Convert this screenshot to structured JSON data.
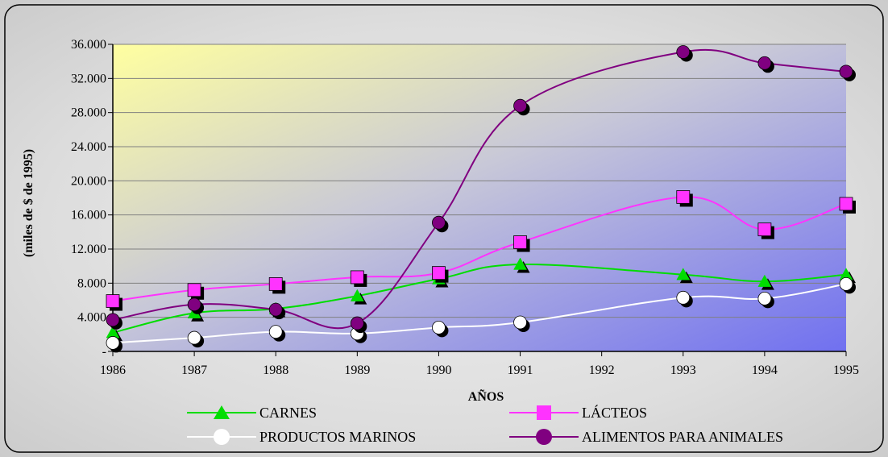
{
  "chart_data": {
    "type": "line",
    "title": "",
    "xlabel": "AÑOS",
    "ylabel": "(miles de $ de 1995)",
    "categories": [
      "1986",
      "1987",
      "1988",
      "1989",
      "1990",
      "1991",
      "1992",
      "1993",
      "1994",
      "1995"
    ],
    "y_ticks": [
      0,
      4000,
      8000,
      12000,
      16000,
      20000,
      24000,
      28000,
      32000,
      36000
    ],
    "y_tick_labels": [
      "-",
      "4.000",
      "8.000",
      "12.000",
      "16.000",
      "20.000",
      "24.000",
      "28.000",
      "32.000",
      "36.000"
    ],
    "ylim": [
      0,
      36000
    ],
    "grid": true,
    "legend": "bottom",
    "series": [
      {
        "name": "CARNES",
        "marker": "triangle",
        "color": "#00dd00",
        "values": [
          2200,
          4500,
          5000,
          6500,
          8500,
          10200,
          null,
          9000,
          8200,
          9000
        ]
      },
      {
        "name": "LÁCTEOS",
        "marker": "square",
        "color": "#ff33ff",
        "values": [
          5900,
          7200,
          7900,
          8700,
          9200,
          12800,
          null,
          18100,
          14300,
          17300
        ]
      },
      {
        "name": "PRODUCTOS MARINOS",
        "marker": "circle",
        "color": "#ffffff",
        "values": [
          1000,
          1600,
          2300,
          2100,
          2800,
          3400,
          null,
          6300,
          6200,
          7900
        ]
      },
      {
        "name": "ALIMENTOS PARA ANIMALES",
        "marker": "circle",
        "color": "#800080",
        "values": [
          3700,
          5500,
          4900,
          3300,
          15100,
          28800,
          null,
          35100,
          33800,
          32800
        ]
      }
    ]
  }
}
